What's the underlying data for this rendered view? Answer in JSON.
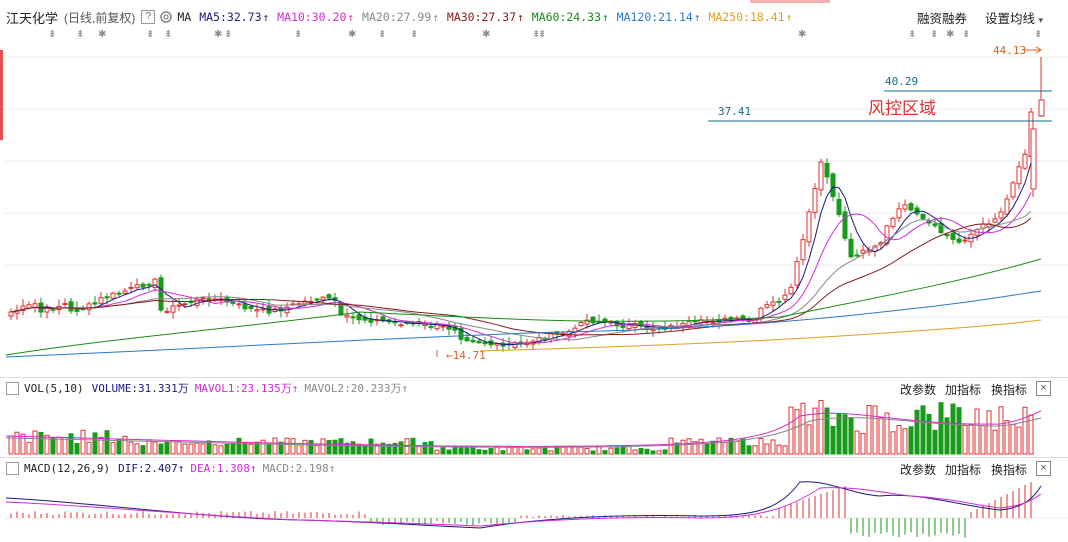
{
  "header": {
    "stock_name": "江天化学",
    "mode": "(日线,前复权)",
    "help_label": "?",
    "ma_label": "MA",
    "ma_items": [
      {
        "label": "MA5:32.73",
        "color": "#1a1a80",
        "arrow": "↑"
      },
      {
        "label": "MA10:30.20",
        "color": "#d42ad4",
        "arrow": "↑"
      },
      {
        "label": "MA20:27.99",
        "color": "#888888",
        "arrow": "↑"
      },
      {
        "label": "MA30:27.37",
        "color": "#8b1a1a",
        "arrow": "↑"
      },
      {
        "label": "MA60:24.33",
        "color": "#1a8a1a",
        "arrow": "↑"
      },
      {
        "label": "MA120:21.14",
        "color": "#2a7ac8",
        "arrow": "↑"
      },
      {
        "label": "MA250:18.41",
        "color": "#e0a020",
        "arrow": "↑"
      }
    ],
    "btn_margin": "融资融券",
    "btn_settings": "设置均线",
    "settings_caret": "▾"
  },
  "price_chart": {
    "level_4413": "44.13",
    "level_4029": "40.29",
    "level_3741": "37.41",
    "low_label": "14.71",
    "risk_zone_label": "风控区域",
    "colors": {
      "up": "#e03030",
      "down": "#1a9a1a",
      "level_line": "#1a6a8a"
    }
  },
  "volume_panel": {
    "name": "VOL(5,10)",
    "volume": "VOLUME:31.331万",
    "mavol1": "MAVOL1:23.135万",
    "mavol2": "MAVOL2:20.233万",
    "arrow": "↑",
    "btn_params": "改参数",
    "btn_add": "加指标",
    "btn_switch": "换指标",
    "close": "×"
  },
  "macd_panel": {
    "name": "MACD(12,26,9)",
    "dif": "DIF:2.407",
    "dea": "DEA:1.308",
    "macd": "MACD:2.198",
    "arrow": "↑",
    "btn_params": "改参数",
    "btn_add": "加指标",
    "btn_switch": "换指标",
    "close": "×"
  }
}
